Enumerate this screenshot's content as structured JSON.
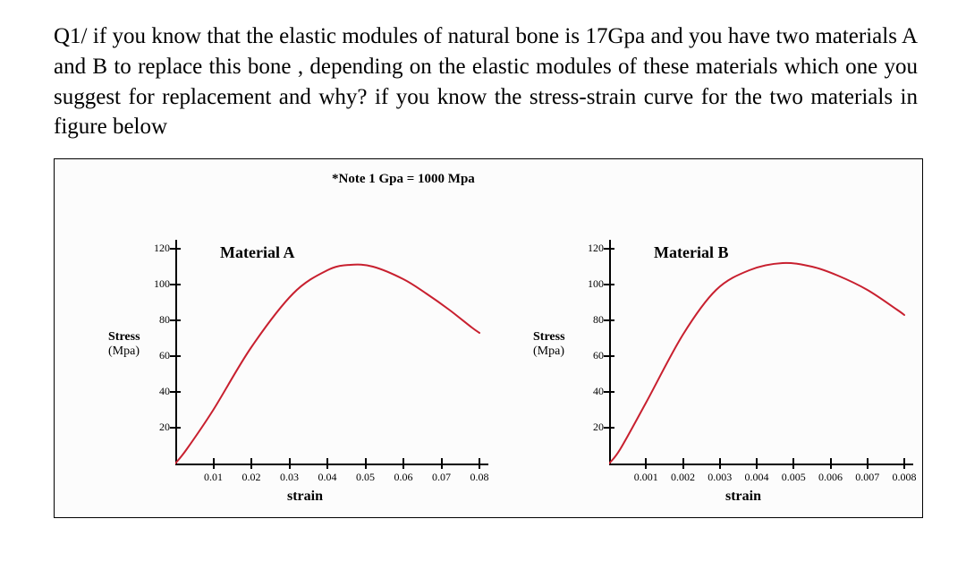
{
  "question": {
    "text": "Q1/ if you know that the elastic modules of natural bone is 17Gpa and you have two materials A and B to replace this bone , depending on the elastic modules of these materials which one you suggest for replacement and why? if you know the stress-strain curve for the two materials in figure below",
    "font_size_pt": 19,
    "line_height": 1.35,
    "alignment": "justify",
    "color": "#000000"
  },
  "figure": {
    "note": "*Note 1 Gpa = 1000 Mpa",
    "note_fontsize": 15,
    "note_bold": true,
    "border_color": "#000000",
    "background_color": "#fcfcfc",
    "layout": "side-by-side",
    "charts": [
      {
        "type": "line",
        "title": "Material A",
        "title_fontsize": 18,
        "curve_color": "#c8202f",
        "curve_width": 2,
        "axis_color": "#000000",
        "ylabel": "Stress",
        "ylabel_unit": "(Mpa)",
        "ylabel_first_value": 80,
        "xlabel": "strain",
        "label_fontsize": 14,
        "tick_fontsize": 12,
        "xlim": [
          0,
          0.08
        ],
        "ylim": [
          0,
          120
        ],
        "xticks": [
          0.01,
          0.02,
          0.03,
          0.04,
          0.05,
          0.06,
          0.07,
          0.08
        ],
        "yticks": [
          20,
          40,
          60,
          80,
          100,
          120
        ],
        "series_x": [
          0.0,
          0.003,
          0.01,
          0.02,
          0.031,
          0.04,
          0.046,
          0.052,
          0.06,
          0.066,
          0.072,
          0.078,
          0.08
        ],
        "series_y": [
          0,
          8,
          30,
          65,
          95,
          108,
          111,
          110,
          103,
          95,
          86,
          76,
          73
        ],
        "background_color": "#fcfcfc"
      },
      {
        "type": "line",
        "title": "Material B",
        "title_fontsize": 18,
        "curve_color": "#c8202f",
        "curve_width": 2,
        "axis_color": "#000000",
        "ylabel": "Stress",
        "ylabel_unit": "(Mpa)",
        "ylabel_first_value": 80,
        "xlabel": "strain",
        "label_fontsize": 14,
        "tick_fontsize": 12,
        "xlim": [
          0,
          0.008
        ],
        "ylim": [
          0,
          120
        ],
        "xticks": [
          0.001,
          0.002,
          0.003,
          0.004,
          0.005,
          0.006,
          0.007,
          0.008
        ],
        "yticks": [
          20,
          40,
          60,
          80,
          100,
          120
        ],
        "series_x": [
          0.0,
          0.0003,
          0.001,
          0.002,
          0.0029,
          0.0038,
          0.0047,
          0.0055,
          0.0062,
          0.007,
          0.0078,
          0.008
        ],
        "series_y": [
          0,
          8,
          34,
          72,
          97,
          108,
          112,
          110,
          105,
          97,
          86,
          83
        ],
        "background_color": "#fcfcfc"
      }
    ]
  }
}
